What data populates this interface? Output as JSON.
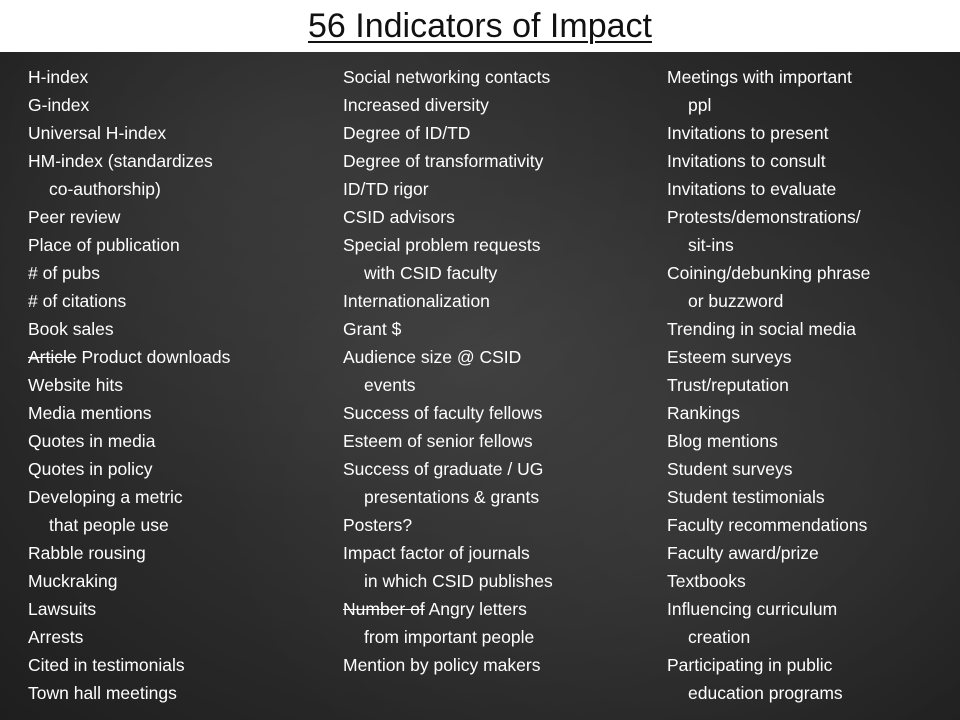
{
  "slide": {
    "title": "56 Indicators of Impact",
    "background_color": "#2c2c2c",
    "text_color": "#ffffff",
    "title_bar_color": "#ffffff",
    "title_color": "#111111"
  },
  "columns": {
    "col1": [
      {
        "text": "H-index"
      },
      {
        "text": "G-index"
      },
      {
        "text": "Universal H-index"
      },
      {
        "text": "HM-index (standardizes"
      },
      {
        "text": "co-authorship)"
      },
      {
        "text": "Peer review"
      },
      {
        "text": "Place of publication"
      },
      {
        "text": "# of pubs"
      },
      {
        "text": "# of citations"
      },
      {
        "text": "Book sales"
      },
      {
        "struck": "Article",
        "text": " Product downloads"
      },
      {
        "text": "Website hits"
      },
      {
        "text": "Media mentions"
      },
      {
        "text": "Quotes in media"
      },
      {
        "text": "Quotes in policy"
      },
      {
        "text": "Developing a metric"
      },
      {
        "text": "that people use"
      },
      {
        "text": "Rabble rousing"
      },
      {
        "text": "Muckraking"
      },
      {
        "text": "Lawsuits"
      },
      {
        "text": "Arrests"
      },
      {
        "text": "Cited in testimonials"
      },
      {
        "text": "Town hall meetings"
      }
    ],
    "col2": [
      {
        "text": "Social networking contacts"
      },
      {
        "text": "Increased diversity"
      },
      {
        "text": "Degree of ID/TD"
      },
      {
        "text": "Degree of transformativity"
      },
      {
        "text": "ID/TD rigor"
      },
      {
        "text": "CSID advisors"
      },
      {
        "text": "Special problem requests"
      },
      {
        "text": "with CSID faculty"
      },
      {
        "text": "Internationalization"
      },
      {
        "text": "Grant $"
      },
      {
        "text": "Audience size @ CSID"
      },
      {
        "text": "events"
      },
      {
        "text": "Success of faculty fellows"
      },
      {
        "text": "Esteem of senior fellows"
      },
      {
        "text": "Success of graduate / UG"
      },
      {
        "text": "presentations & grants"
      },
      {
        "text": "Posters?"
      },
      {
        "text": "Impact factor of journals"
      },
      {
        "text": "in which CSID publishes"
      },
      {
        "struck": "Number of",
        "text": " Angry letters"
      },
      {
        "text": "from important people"
      },
      {
        "text": "Mention by policy makers"
      }
    ],
    "col3": [
      {
        "text": "Meetings with important"
      },
      {
        "text": "ppl"
      },
      {
        "text": "Invitations to present"
      },
      {
        "text": "Invitations to consult"
      },
      {
        "text": "Invitations to evaluate"
      },
      {
        "text": "Protests/demonstrations/"
      },
      {
        "text": "sit-ins"
      },
      {
        "text": "Coining/debunking phrase"
      },
      {
        "text": "or buzzword"
      },
      {
        "text": "Trending in social media"
      },
      {
        "text": "Esteem surveys"
      },
      {
        "text": "Trust/reputation"
      },
      {
        "text": "Rankings"
      },
      {
        "text": "Blog mentions"
      },
      {
        "text": "Student surveys"
      },
      {
        "text": "Student testimonials"
      },
      {
        "text": "Faculty recommendations"
      },
      {
        "text": "Faculty award/prize"
      },
      {
        "text": "Textbooks"
      },
      {
        "text": "Influencing curriculum"
      },
      {
        "text": "creation"
      },
      {
        "text": "Participating in public"
      },
      {
        "text": "education programs"
      }
    ]
  }
}
